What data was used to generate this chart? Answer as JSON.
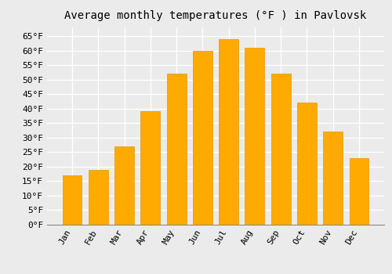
{
  "title": "Average monthly temperatures (°F ) in Pavlovsk",
  "months": [
    "Jan",
    "Feb",
    "Mar",
    "Apr",
    "May",
    "Jun",
    "Jul",
    "Aug",
    "Sep",
    "Oct",
    "Nov",
    "Dec"
  ],
  "values": [
    17,
    19,
    27,
    39,
    52,
    60,
    64,
    61,
    52,
    42,
    32,
    23
  ],
  "bar_color": "#FFAA00",
  "bar_edge_color": "#E8950A",
  "background_color": "#EBEBEB",
  "grid_color": "#FFFFFF",
  "ylim": [
    0,
    68
  ],
  "yticks": [
    0,
    5,
    10,
    15,
    20,
    25,
    30,
    35,
    40,
    45,
    50,
    55,
    60,
    65
  ],
  "title_fontsize": 10,
  "tick_fontsize": 8,
  "title_font": "monospace",
  "tick_font": "monospace"
}
